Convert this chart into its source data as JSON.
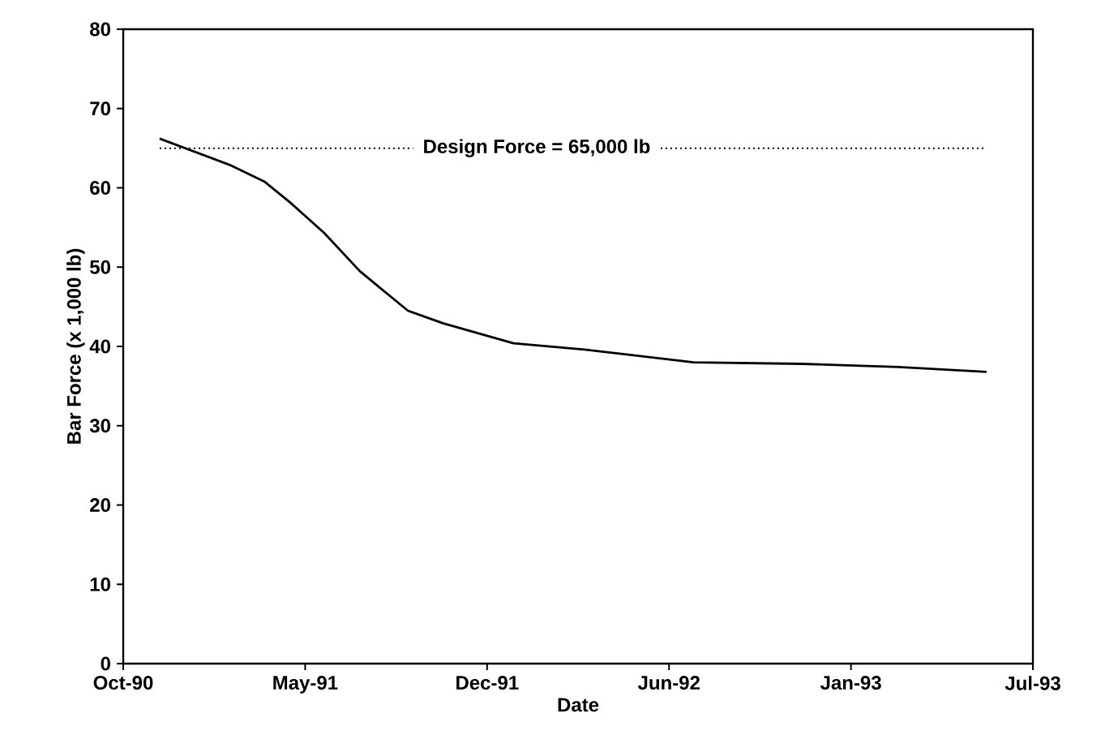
{
  "chart_data": {
    "type": "line",
    "xlabel": "Date",
    "ylabel": "Bar Force (x 1,000 lb)",
    "x": [
      "1990-12-06",
      "1991-02-23",
      "1991-03-31",
      "1991-04-28",
      "1991-06-05",
      "1991-07-14",
      "1991-08-04",
      "1991-09-05",
      "1991-10-14",
      "1991-12-30",
      "1992-03-17",
      "1992-07-15",
      "1992-11-11",
      "1993-02-25",
      "1993-06-02"
    ],
    "series": [
      {
        "color": "#000000",
        "values": [
          66.2,
          62.8,
          60.8,
          58.2,
          54.3,
          49.5,
          47.5,
          44.5,
          42.9,
          40.4,
          39.6,
          38.0,
          37.8,
          37.4,
          36.8
        ]
      }
    ],
    "xlim": [
      "1990-10-27",
      "1993-07-23"
    ],
    "xticks": [
      {
        "value": "1990-10-27",
        "label": "Oct-90"
      },
      {
        "value": "1991-05-15",
        "label": "May-91"
      },
      {
        "value": "1991-12-01",
        "label": "Dec-91"
      },
      {
        "value": "1992-06-18",
        "label": "Jun-92"
      },
      {
        "value": "1993-01-04",
        "label": "Jan-93"
      },
      {
        "value": "1993-07-23",
        "label": "Jul-93"
      }
    ],
    "ylim": [
      0,
      80
    ],
    "yticks": [
      0,
      10,
      20,
      30,
      40,
      50,
      60,
      70,
      80
    ],
    "ref_lines": [
      {
        "axis": "y",
        "value": 65,
        "label": "Design Force = 65,000 lb",
        "line_style": "dotted",
        "color": "#000000"
      }
    ],
    "grid": false,
    "marker": "none",
    "line_style": "solid"
  }
}
